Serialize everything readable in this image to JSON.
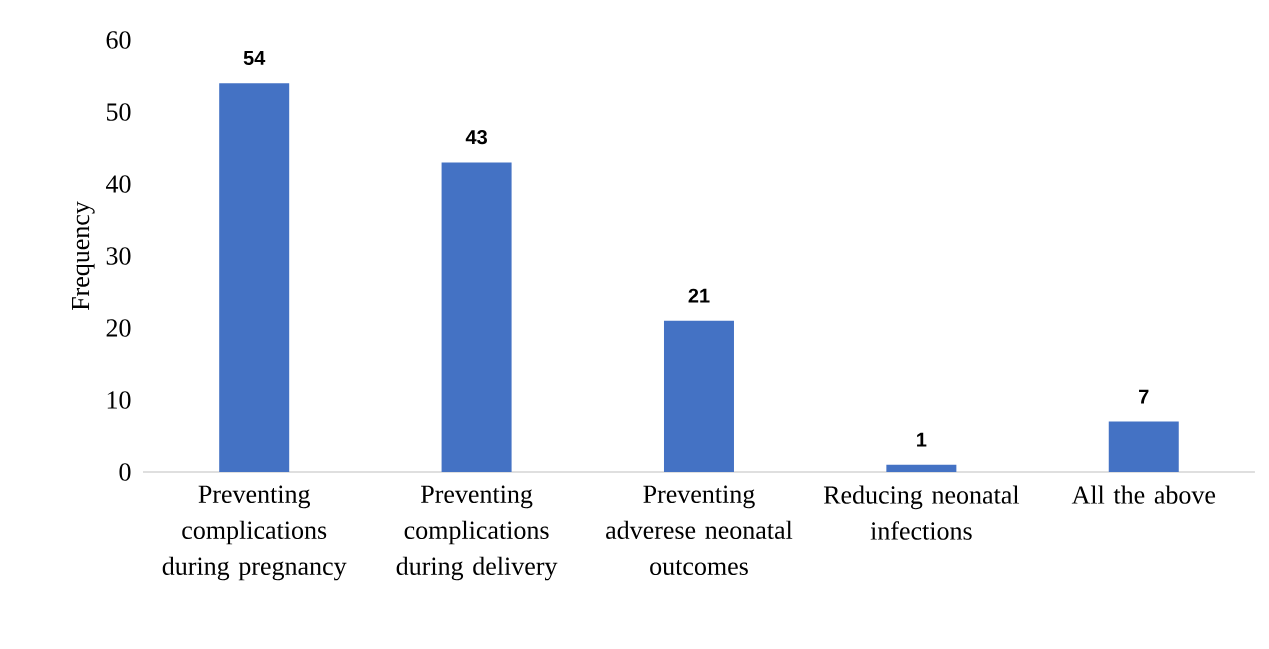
{
  "chart_data": {
    "type": "bar",
    "ylabel": "Frequency",
    "categories": [
      "Preventing complications during pregnancy",
      "Preventing complications during delivery",
      "Preventing adverese neonatal outcomes",
      "Reducing neonatal infections",
      "All the above"
    ],
    "values": [
      54,
      43,
      21,
      1,
      7
    ],
    "color": "#4472c4",
    "ylim": [
      0,
      60
    ],
    "yticks": [
      0,
      10,
      20,
      30,
      40,
      50,
      60
    ],
    "grid": false,
    "data_labels": true
  }
}
